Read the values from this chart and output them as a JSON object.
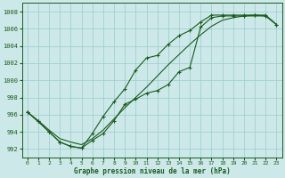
{
  "title": "Graphe pression niveau de la mer (hPa)",
  "background_color": "#cce8e8",
  "grid_color": "#99cccc",
  "line_color": "#1a5c1a",
  "x_ticks": [
    0,
    1,
    2,
    3,
    4,
    5,
    6,
    7,
    8,
    9,
    10,
    11,
    12,
    13,
    14,
    15,
    16,
    17,
    18,
    19,
    20,
    21,
    22,
    23
  ],
  "ylim": [
    991.0,
    1009.0
  ],
  "y_ticks": [
    992,
    994,
    996,
    998,
    1000,
    1002,
    1004,
    1006,
    1008
  ],
  "series1_x": [
    0,
    1,
    2,
    3,
    4,
    5,
    6,
    7,
    8,
    9,
    10,
    11,
    12,
    13,
    14,
    15,
    16,
    17,
    18,
    19,
    20,
    21,
    22,
    23
  ],
  "series1_y": [
    996.3,
    995.2,
    994.0,
    992.8,
    992.3,
    992.1,
    993.0,
    993.8,
    995.3,
    997.2,
    997.8,
    998.5,
    998.8,
    999.5,
    1001.0,
    1001.5,
    1006.2,
    1007.3,
    1007.5,
    1007.5,
    1007.5,
    1007.6,
    1007.6,
    1006.5
  ],
  "series2_x": [
    0,
    1,
    2,
    3,
    4,
    5,
    6,
    7,
    8,
    9,
    10,
    11,
    12,
    13,
    14,
    15,
    16,
    17,
    18,
    19,
    20,
    21,
    22,
    23
  ],
  "series2_y": [
    996.3,
    995.2,
    994.0,
    992.8,
    992.3,
    992.1,
    993.8,
    995.8,
    997.5,
    999.0,
    1001.2,
    1002.6,
    1002.9,
    1004.2,
    1005.2,
    1005.8,
    1006.8,
    1007.6,
    1007.6,
    1007.6,
    1007.6,
    1007.6,
    1007.5,
    1006.5
  ],
  "series3_x": [
    0,
    1,
    2,
    3,
    4,
    5,
    6,
    7,
    8,
    9,
    10,
    11,
    12,
    13,
    14,
    15,
    16,
    17,
    18,
    19,
    20,
    21,
    22,
    23
  ],
  "series3_y": [
    996.3,
    995.3,
    994.2,
    993.2,
    992.8,
    992.5,
    993.2,
    994.2,
    995.5,
    996.8,
    998.0,
    999.2,
    1000.5,
    1001.8,
    1003.0,
    1004.2,
    1005.3,
    1006.3,
    1007.0,
    1007.3,
    1007.5,
    1007.5,
    1007.5,
    1006.5
  ]
}
